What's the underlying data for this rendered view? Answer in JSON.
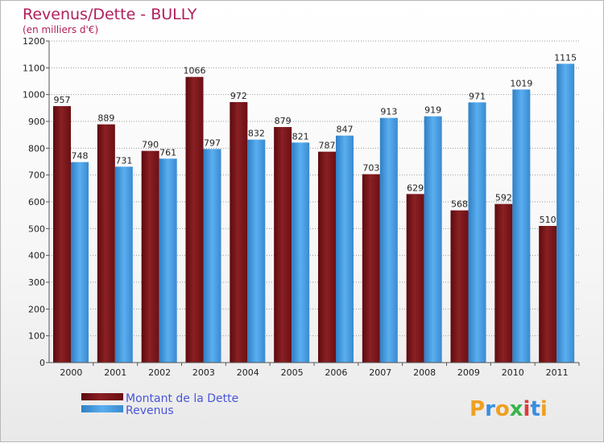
{
  "chart_data": {
    "type": "bar",
    "title": "Revenus/Dette - BULLY",
    "subtitle": "(en milliers d'€)",
    "categories": [
      "2000",
      "2001",
      "2002",
      "2003",
      "2004",
      "2005",
      "2006",
      "2007",
      "2008",
      "2009",
      "2010",
      "2011"
    ],
    "series": [
      {
        "name": "Montant de la Dette",
        "color": "#7a1418",
        "values": [
          957,
          889,
          790,
          1066,
          972,
          879,
          787,
          703,
          629,
          568,
          592,
          510
        ]
      },
      {
        "name": "Revenus",
        "color": "#4a9fe0",
        "values": [
          748,
          731,
          761,
          797,
          832,
          821,
          847,
          913,
          919,
          971,
          1019,
          1115
        ]
      }
    ],
    "ylim": [
      0,
      1200
    ],
    "yticks": [
      0,
      100,
      200,
      300,
      400,
      500,
      600,
      700,
      800,
      900,
      1000,
      1100,
      1200
    ],
    "grid": true,
    "legend": "bottom-left"
  },
  "logo": {
    "letters": [
      "P",
      "r",
      "o",
      "x",
      "i",
      "t",
      "i"
    ],
    "colors": [
      "#f0a020",
      "#3a8ee0",
      "#f0a020",
      "#39b54a",
      "#e03a3a",
      "#3a8ee0",
      "#f0a020"
    ]
  }
}
